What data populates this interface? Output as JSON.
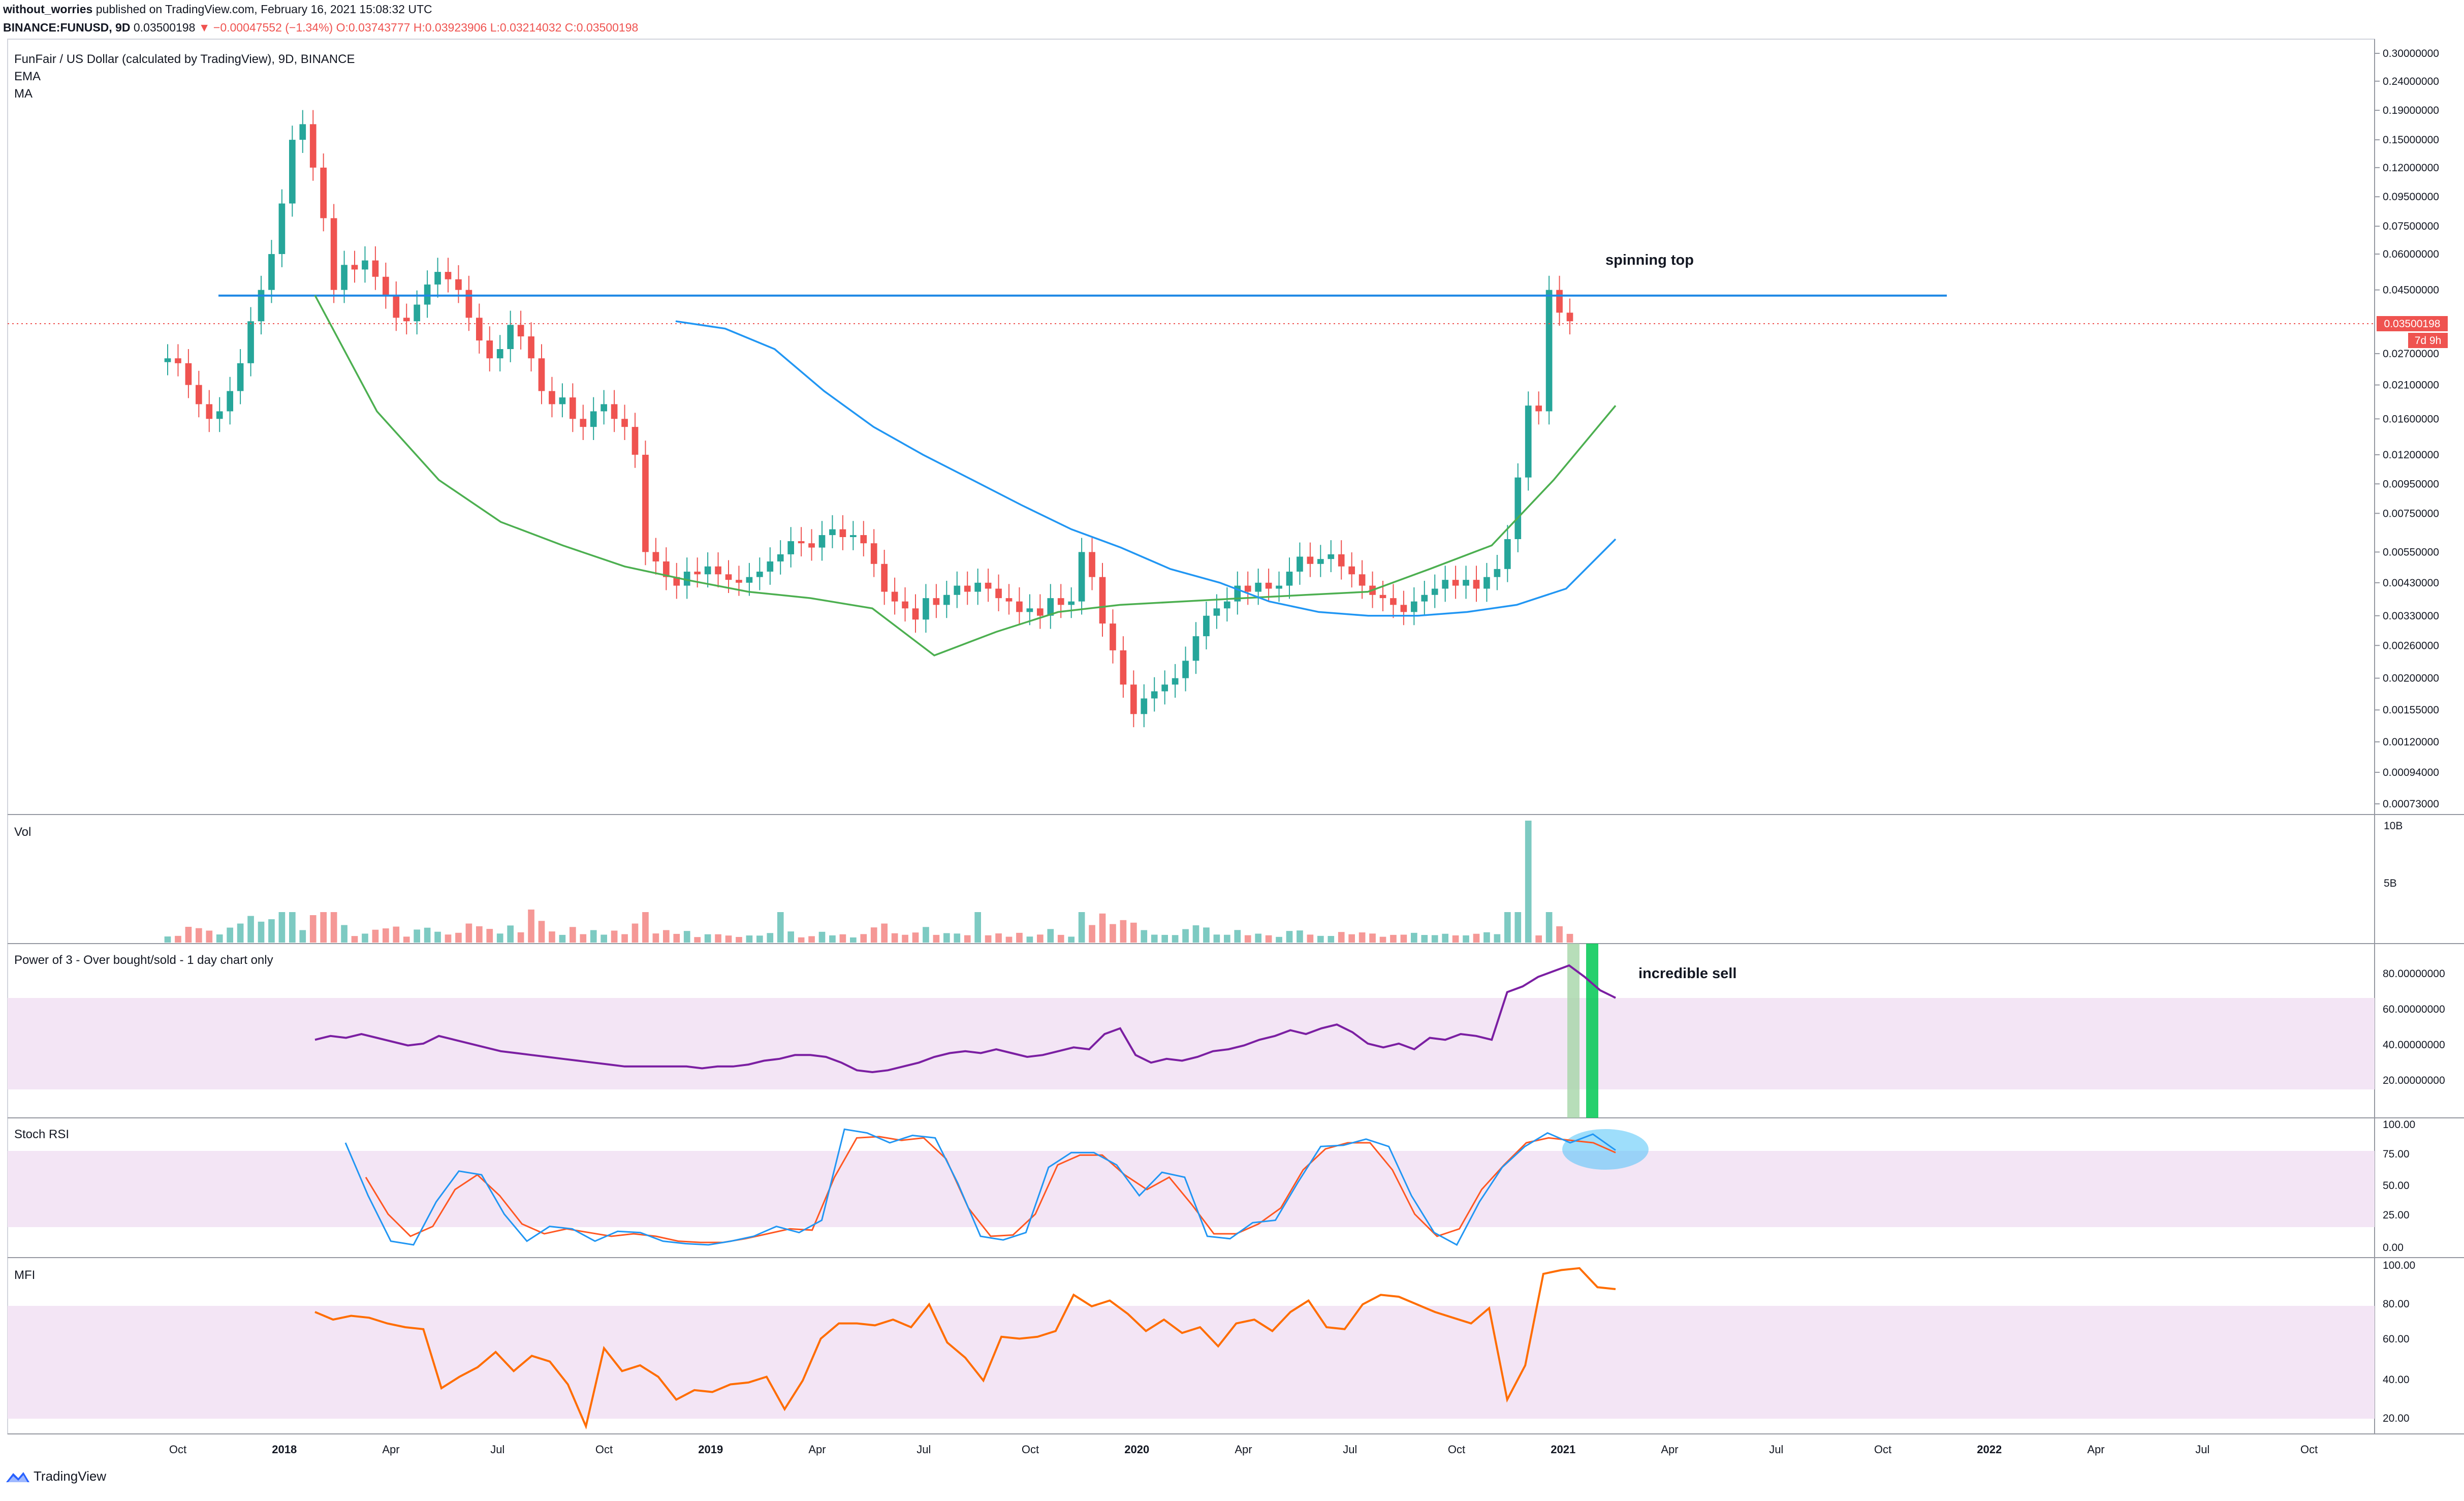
{
  "header": {
    "line1_author": "without_worries",
    "line1_rest": " published on TradingView.com, February 16, 2021 15:08:32 UTC",
    "symbol": "BINANCE:FUNUSD, 9D",
    "price": "0.03500198",
    "change": "▼ −0.00047552 (−1.34%)",
    "o": "O:0.03743777",
    "h": "H:0.03923906",
    "l": "L:0.03214032",
    "c": "C:0.03500198"
  },
  "price_pane": {
    "title": "FunFair / US Dollar (calculated by TradingView), 9D, BINANCE",
    "ema_label": "EMA",
    "ma_label": "MA",
    "last_price_tag": "0.03500198",
    "countdown_tag": "7d 9h",
    "annotation": "spinning top",
    "resistance_level": 0.043
  },
  "vol_pane": {
    "title": "Vol",
    "ticks": [
      "10B",
      "5B"
    ]
  },
  "power_pane": {
    "title": "Power of 3 - Over bought/sold - 1 day chart only",
    "annotation": "incredible sell"
  },
  "stoch_pane": {
    "title": "Stoch RSI"
  },
  "mfi_pane": {
    "title": "MFI"
  },
  "footer": {
    "brand": "TradingView"
  },
  "colors": {
    "up": "#26a69a",
    "down": "#ef5350",
    "ema": "#4caf50",
    "ma": "#2196f3",
    "power": "#7b1fa2",
    "stoch_k": "#2196f3",
    "stoch_d": "#ff5722",
    "mfi": "#ff6d00",
    "band": "#f3e5f5",
    "resistance": "#1e88e5"
  },
  "chart_data": {
    "type": "candlestick",
    "price_scale": "log",
    "price_axis_ticks": [
      "0.30000000",
      "0.24000000",
      "0.19000000",
      "0.15000000",
      "0.12000000",
      "0.09500000",
      "0.07500000",
      "0.06000000",
      "0.04500000",
      "0.02700000",
      "0.02100000",
      "0.01600000",
      "0.01200000",
      "0.00950000",
      "0.00750000",
      "0.00550000",
      "0.00430000",
      "0.00330000",
      "0.00260000",
      "0.00200000",
      "0.00155000",
      "0.00120000",
      "0.00094000",
      "0.00073000"
    ],
    "price_axis_values": [
      0.3,
      0.24,
      0.19,
      0.15,
      0.12,
      0.095,
      0.075,
      0.06,
      0.045,
      0.027,
      0.021,
      0.016,
      0.012,
      0.0095,
      0.0075,
      0.0055,
      0.0043,
      0.0033,
      0.0026,
      0.002,
      0.00155,
      0.0012,
      0.00094,
      0.00073
    ],
    "power_axis": [
      "80.00000000",
      "60.00000000",
      "40.00000000",
      "20.00000000"
    ],
    "stoch_axis": [
      "100.00",
      "75.00",
      "50.00",
      "25.00",
      "0.00"
    ],
    "mfi_axis": [
      "100.00",
      "80.00",
      "60.00",
      "40.00",
      "20.00"
    ],
    "time_axis": [
      {
        "label": "Oct",
        "bold": false
      },
      {
        "label": "2018",
        "bold": true
      },
      {
        "label": "Apr",
        "bold": false
      },
      {
        "label": "Jul",
        "bold": false
      },
      {
        "label": "Oct",
        "bold": false
      },
      {
        "label": "2019",
        "bold": true
      },
      {
        "label": "Apr",
        "bold": false
      },
      {
        "label": "Jul",
        "bold": false
      },
      {
        "label": "Oct",
        "bold": false
      },
      {
        "label": "2020",
        "bold": true
      },
      {
        "label": "Apr",
        "bold": false
      },
      {
        "label": "Jul",
        "bold": false
      },
      {
        "label": "Oct",
        "bold": false
      },
      {
        "label": "2021",
        "bold": true
      },
      {
        "label": "Apr",
        "bold": false
      },
      {
        "label": "Jul",
        "bold": false
      },
      {
        "label": "Oct",
        "bold": false
      },
      {
        "label": "2022",
        "bold": true
      },
      {
        "label": "Apr",
        "bold": false
      },
      {
        "label": "Jul",
        "bold": false
      },
      {
        "label": "Oct",
        "bold": false
      }
    ],
    "candles_close": [
      0.026,
      0.025,
      0.021,
      0.018,
      0.016,
      0.017,
      0.02,
      0.025,
      0.035,
      0.045,
      0.06,
      0.09,
      0.15,
      0.17,
      0.12,
      0.08,
      0.045,
      0.055,
      0.053,
      0.057,
      0.05,
      0.043,
      0.036,
      0.035,
      0.04,
      0.047,
      0.052,
      0.049,
      0.045,
      0.036,
      0.03,
      0.026,
      0.028,
      0.034,
      0.031,
      0.026,
      0.02,
      0.018,
      0.019,
      0.016,
      0.015,
      0.017,
      0.018,
      0.016,
      0.015,
      0.012,
      0.0055,
      0.0051,
      0.0045,
      0.0042,
      0.0047,
      0.0046,
      0.0049,
      0.0046,
      0.0044,
      0.0043,
      0.0045,
      0.0047,
      0.0051,
      0.0054,
      0.006,
      0.0059,
      0.0057,
      0.0063,
      0.0066,
      0.0062,
      0.0063,
      0.0059,
      0.005,
      0.004,
      0.0037,
      0.0035,
      0.0032,
      0.0038,
      0.0036,
      0.0039,
      0.0042,
      0.004,
      0.0043,
      0.0041,
      0.0038,
      0.0037,
      0.0034,
      0.0035,
      0.0033,
      0.0038,
      0.0036,
      0.0037,
      0.0055,
      0.0045,
      0.0031,
      0.0025,
      0.0019,
      0.0015,
      0.0017,
      0.0018,
      0.0019,
      0.002,
      0.0023,
      0.0028,
      0.0033,
      0.0035,
      0.0037,
      0.0042,
      0.004,
      0.0043,
      0.0041,
      0.0042,
      0.0047,
      0.0053,
      0.005,
      0.0052,
      0.0054,
      0.0049,
      0.0046,
      0.0042,
      0.0039,
      0.0038,
      0.0036,
      0.0034,
      0.0037,
      0.0039,
      0.0041,
      0.0044,
      0.0042,
      0.0044,
      0.0041,
      0.0045,
      0.0048,
      0.0061,
      0.01,
      0.0178,
      0.017,
      0.045,
      0.0375,
      0.035
    ],
    "ema_values": [
      0.0431,
      0.017,
      0.0098,
      0.007,
      0.0058,
      0.0049,
      0.0044,
      0.004,
      0.0038,
      0.0035,
      0.0024,
      0.0029,
      0.0034,
      0.0036,
      0.0037,
      0.0038,
      0.0039,
      0.004,
      0.0048,
      0.0058,
      0.0098,
      0.0178
    ],
    "ma_values": [
      0.035,
      0.033,
      0.028,
      0.02,
      0.015,
      0.012,
      0.0098,
      0.008,
      0.0066,
      0.0057,
      0.0048,
      0.0043,
      0.0037,
      0.0034,
      0.0033,
      0.0033,
      0.0034,
      0.0036,
      0.0041,
      0.0061
    ],
    "power_values": [
      52,
      54,
      53,
      55,
      53,
      51,
      49,
      50,
      54,
      52,
      50,
      48,
      46,
      45,
      44,
      43,
      42,
      41,
      40,
      39,
      38,
      38,
      38,
      38,
      38,
      37,
      38,
      38,
      39,
      41,
      42,
      44,
      44,
      43,
      40,
      36,
      35,
      36,
      38,
      40,
      43,
      45,
      46,
      45,
      47,
      45,
      43,
      44,
      46,
      48,
      47,
      55,
      58,
      44,
      40,
      42,
      41,
      43,
      46,
      47,
      49,
      52,
      54,
      57,
      55,
      58,
      60,
      56,
      50,
      48,
      50,
      47,
      53,
      52,
      55,
      54,
      52,
      77,
      80,
      85,
      88,
      91,
      85,
      78,
      74
    ],
    "stoch_k": [
      88,
      45,
      8,
      5,
      40,
      65,
      62,
      30,
      8,
      20,
      18,
      8,
      16,
      15,
      8,
      6,
      5,
      8,
      12,
      20,
      15,
      25,
      99,
      96,
      88,
      94,
      92,
      55,
      12,
      9,
      15,
      68,
      80,
      80,
      70,
      45,
      64,
      60,
      12,
      10,
      23,
      25,
      56,
      85,
      86,
      91,
      85,
      45,
      15,
      5,
      40,
      68,
      85,
      96,
      88,
      95,
      82
    ],
    "stoch_d": [
      60,
      30,
      12,
      20,
      50,
      62,
      45,
      22,
      14,
      18,
      15,
      12,
      14,
      12,
      8,
      7,
      7,
      10,
      14,
      18,
      17,
      60,
      92,
      93,
      90,
      92,
      75,
      35,
      12,
      13,
      30,
      70,
      78,
      78,
      62,
      50,
      60,
      38,
      14,
      14,
      22,
      35,
      66,
      83,
      88,
      88,
      66,
      30,
      12,
      18,
      50,
      70,
      88,
      92,
      90,
      88,
      80
    ],
    "mfi_values": [
      76,
      72,
      74,
      73,
      70,
      68,
      67,
      36,
      42,
      47,
      55,
      45,
      53,
      50,
      38,
      16,
      57,
      45,
      48,
      42,
      30,
      35,
      34,
      38,
      39,
      42,
      25,
      40,
      62,
      70,
      70,
      69,
      72,
      68,
      80,
      60,
      52,
      40,
      63,
      62,
      63,
      66,
      85,
      79,
      82,
      75,
      66,
      72,
      65,
      68,
      58,
      70,
      72,
      66,
      76,
      82,
      68,
      67,
      80,
      85,
      84,
      80,
      76,
      73,
      70,
      78,
      30,
      48,
      96,
      98,
      99,
      89,
      88
    ]
  }
}
